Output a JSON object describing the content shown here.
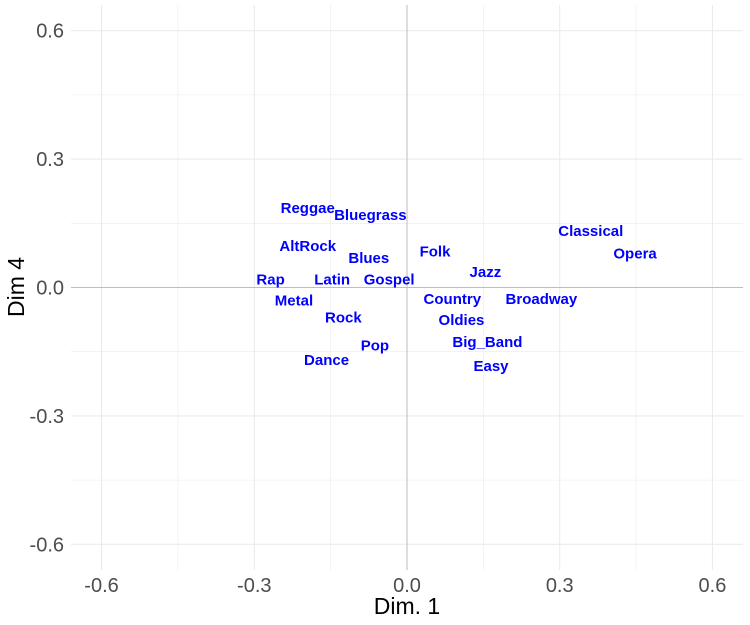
{
  "chart_data": {
    "type": "scatter",
    "title": "",
    "xlabel": "Dim. 1",
    "ylabel": "Dim 4",
    "xlim": [
      -0.66,
      0.66
    ],
    "ylim": [
      -0.66,
      0.66
    ],
    "x_ticks": [
      -0.6,
      -0.3,
      0.0,
      0.3,
      0.6
    ],
    "x_tick_labels": [
      "-0.6",
      "-0.3",
      "0.0",
      "0.3",
      "0.6"
    ],
    "y_ticks": [
      -0.6,
      -0.3,
      0.0,
      0.3,
      0.6
    ],
    "y_tick_labels": [
      "-0.6",
      "-0.3",
      "0.0",
      "0.3",
      "0.6"
    ],
    "grid": true,
    "zero_lines": true,
    "colors": {
      "label": "#0000ff",
      "grid": "#ebebeb",
      "zero_line": "#bebebe"
    },
    "points": [
      {
        "label": "Reggae",
        "x": -0.195,
        "y": 0.184
      },
      {
        "label": "Bluegrass",
        "x": -0.072,
        "y": 0.168
      },
      {
        "label": "AltRock",
        "x": -0.195,
        "y": 0.096
      },
      {
        "label": "Blues",
        "x": -0.075,
        "y": 0.068
      },
      {
        "label": "Folk",
        "x": 0.055,
        "y": 0.083
      },
      {
        "label": "Rap",
        "x": -0.268,
        "y": 0.018
      },
      {
        "label": "Latin",
        "x": -0.147,
        "y": 0.018
      },
      {
        "label": "Gospel",
        "x": -0.035,
        "y": 0.018
      },
      {
        "label": "Jazz",
        "x": 0.154,
        "y": 0.035
      },
      {
        "label": "Classical",
        "x": 0.361,
        "y": 0.131
      },
      {
        "label": "Opera",
        "x": 0.448,
        "y": 0.078
      },
      {
        "label": "Metal",
        "x": -0.222,
        "y": -0.032
      },
      {
        "label": "Country",
        "x": 0.089,
        "y": -0.028
      },
      {
        "label": "Broadway",
        "x": 0.264,
        "y": -0.028
      },
      {
        "label": "Rock",
        "x": -0.125,
        "y": -0.071
      },
      {
        "label": "Oldies",
        "x": 0.107,
        "y": -0.077
      },
      {
        "label": "Pop",
        "x": -0.063,
        "y": -0.137
      },
      {
        "label": "Big_Band",
        "x": 0.158,
        "y": -0.128
      },
      {
        "label": "Dance",
        "x": -0.158,
        "y": -0.171
      },
      {
        "label": "Easy",
        "x": 0.165,
        "y": -0.185
      }
    ]
  }
}
